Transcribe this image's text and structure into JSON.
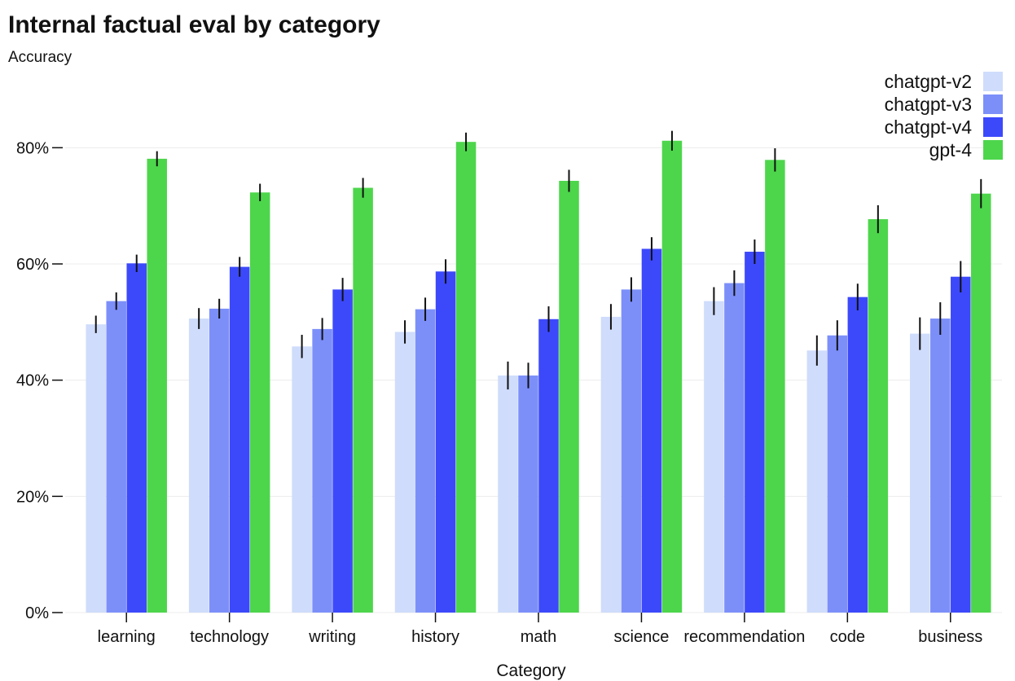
{
  "chart_data": {
    "type": "bar",
    "title": "Internal factual eval by category",
    "ylabel": "Accuracy",
    "xlabel": "Category",
    "ylim": [
      0,
      0.9
    ],
    "yticks": [
      0,
      0.2,
      0.4,
      0.6,
      0.8
    ],
    "ytick_labels": [
      "0%",
      "20%",
      "40%",
      "60%",
      "80%"
    ],
    "grid": true,
    "legend_position": "top-right",
    "categories": [
      "learning",
      "technology",
      "writing",
      "history",
      "math",
      "science",
      "recommendation",
      "code",
      "business"
    ],
    "series": [
      {
        "name": "chatgpt-v2",
        "color": "#cfdcfb",
        "values": [
          0.496,
          0.506,
          0.458,
          0.483,
          0.408,
          0.509,
          0.536,
          0.451,
          0.48
        ],
        "errors": [
          0.015,
          0.018,
          0.02,
          0.02,
          0.024,
          0.022,
          0.024,
          0.026,
          0.028
        ]
      },
      {
        "name": "chatgpt-v3",
        "color": "#7c8ff9",
        "values": [
          0.536,
          0.523,
          0.488,
          0.522,
          0.408,
          0.556,
          0.567,
          0.477,
          0.506
        ],
        "errors": [
          0.015,
          0.017,
          0.019,
          0.02,
          0.022,
          0.021,
          0.022,
          0.026,
          0.028
        ]
      },
      {
        "name": "chatgpt-v4",
        "color": "#3c49fb",
        "values": [
          0.601,
          0.595,
          0.556,
          0.587,
          0.505,
          0.626,
          0.621,
          0.543,
          0.578
        ],
        "errors": [
          0.015,
          0.017,
          0.02,
          0.021,
          0.022,
          0.02,
          0.021,
          0.023,
          0.027
        ]
      },
      {
        "name": "gpt-4",
        "color": "#4dd64c",
        "values": [
          0.781,
          0.723,
          0.731,
          0.81,
          0.743,
          0.812,
          0.779,
          0.677,
          0.721
        ],
        "errors": [
          0.013,
          0.015,
          0.017,
          0.016,
          0.019,
          0.017,
          0.02,
          0.024,
          0.025
        ]
      }
    ]
  }
}
